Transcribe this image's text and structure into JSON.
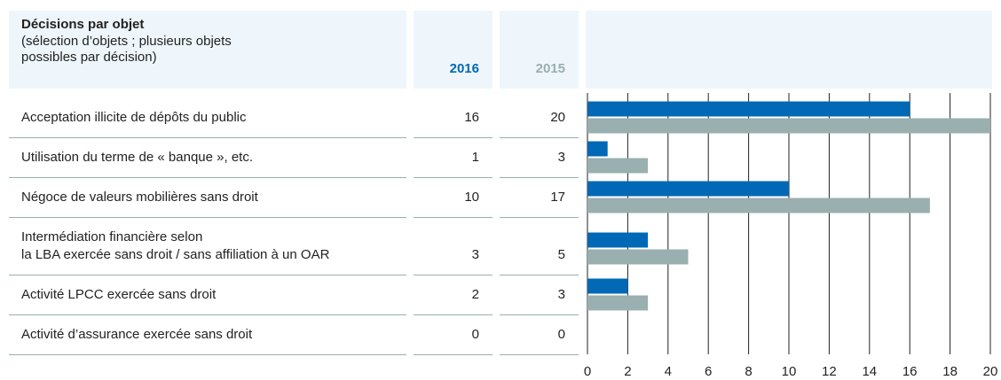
{
  "chart_data": {
    "type": "bar",
    "orientation": "horizontal",
    "title": "Décisions par objet",
    "subtitle": "(sélection d’objets ; plusieurs objets\npossibles par décision)",
    "categories": [
      "Acceptation illicite de dépôts du public",
      "Utilisation du terme de « banque », etc.",
      "Négoce de valeurs mobilières sans droit",
      "Intermédiation financière selon\nla LBA exercée sans droit / sans affiliation à un OAR",
      "Activité LPCC exercée sans droit",
      "Activité d’assurance exercée sans droit"
    ],
    "series": [
      {
        "name": "2016",
        "color": "#0068b4",
        "values": [
          16,
          1,
          10,
          3,
          2,
          0
        ]
      },
      {
        "name": "2015",
        "color": "#9aafaf",
        "values": [
          20,
          3,
          17,
          5,
          3,
          0
        ]
      }
    ],
    "xlim": [
      0,
      20
    ],
    "xticks": [
      0,
      2,
      4,
      6,
      8,
      10,
      12,
      14,
      16,
      18,
      20
    ],
    "grid": true
  }
}
